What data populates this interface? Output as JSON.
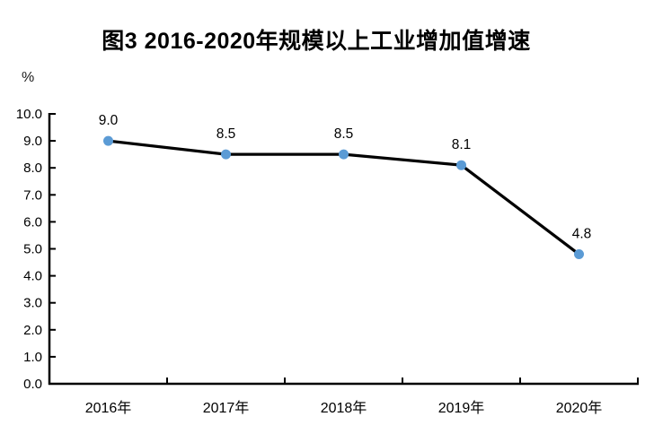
{
  "chart_data": {
    "type": "line",
    "title": "图3 2016-2020年规模以上工业增加值增速",
    "ylabel": "%",
    "xlabel": "",
    "categories": [
      "2016年",
      "2017年",
      "2018年",
      "2019年",
      "2020年"
    ],
    "series": [
      {
        "name": "规模以上工业增加值增速",
        "values": [
          9.0,
          8.5,
          8.5,
          8.1,
          4.8
        ]
      }
    ],
    "point_labels": [
      "9.0",
      "8.5",
      "8.5",
      "8.1",
      "4.8"
    ],
    "yticks": [
      "0.0",
      "1.0",
      "2.0",
      "3.0",
      "4.0",
      "5.0",
      "6.0",
      "7.0",
      "8.0",
      "9.0",
      "10.0"
    ],
    "ylim": [
      0,
      10
    ],
    "grid": false,
    "legend_position": "none",
    "colors": {
      "marker": "#5B9BD5",
      "line": "#000000",
      "axis": "#000000",
      "text": "#000000"
    }
  }
}
